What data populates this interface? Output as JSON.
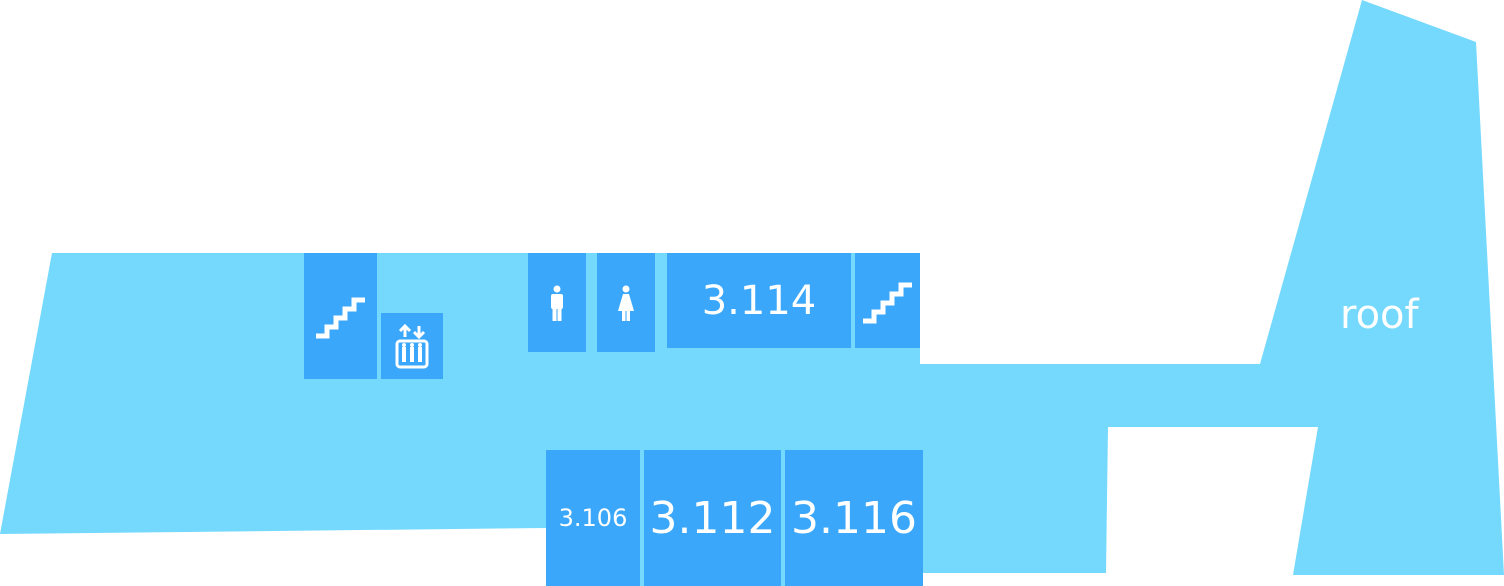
{
  "colors": {
    "floor": "#74d9fd",
    "room": "#3aa7fb",
    "icon": "#ffffff",
    "background": "#ffffff"
  },
  "labels": {
    "roof": "roof"
  },
  "rooms": {
    "r3114": "3.114",
    "r3106": "3.106",
    "r3112": "3.112",
    "r3116": "3.116"
  },
  "icons": {
    "stairs_left": "stairs-icon",
    "elevator": "elevator-icon",
    "mens_restroom": "mens-restroom-icon",
    "womens_restroom": "womens-restroom-icon",
    "stairs_right": "stairs-icon"
  }
}
